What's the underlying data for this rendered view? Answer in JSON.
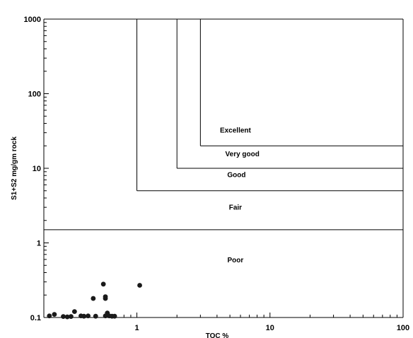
{
  "chart_data": {
    "type": "scatter",
    "xlabel": "TOC %",
    "ylabel": "S1+S2 mg/gm rock",
    "x_scale": "log",
    "y_scale": "log",
    "xlim": [
      0.2,
      100
    ],
    "ylim": [
      0.1,
      1000
    ],
    "x_ticks": [
      1,
      10,
      100
    ],
    "x_tick_labels": [
      "1",
      "10",
      "100"
    ],
    "y_ticks": [
      0.1,
      1,
      10,
      100,
      1000
    ],
    "y_tick_labels": [
      "0.1",
      "1",
      "10",
      "100",
      "1000"
    ],
    "grid": false,
    "legend": "none",
    "point_color": "#1a1a1a",
    "zones": [
      {
        "name": "Excellent",
        "min_toc": 3,
        "min_s1s2": 20,
        "label_x": 5.5,
        "label_y": 30
      },
      {
        "name": "Very good",
        "min_toc": 2,
        "min_s1s2": 10,
        "label_x": 6.2,
        "label_y": 14.5
      },
      {
        "name": "Good",
        "min_toc": 1,
        "min_s1s2": 5,
        "label_x": 5.6,
        "label_y": 7.6
      },
      {
        "name": "Fair",
        "min_toc": 0,
        "min_s1s2": 1.5,
        "label_x": 5.5,
        "label_y": 2.8
      },
      {
        "name": "Poor",
        "min_toc": 0,
        "min_s1s2": 0,
        "label_x": 5.5,
        "label_y": 0.55
      }
    ],
    "points": [
      {
        "x": 0.22,
        "y": 0.105
      },
      {
        "x": 0.24,
        "y": 0.11
      },
      {
        "x": 0.28,
        "y": 0.103
      },
      {
        "x": 0.3,
        "y": 0.102
      },
      {
        "x": 0.32,
        "y": 0.103
      },
      {
        "x": 0.34,
        "y": 0.12
      },
      {
        "x": 0.38,
        "y": 0.105
      },
      {
        "x": 0.4,
        "y": 0.104
      },
      {
        "x": 0.43,
        "y": 0.105
      },
      {
        "x": 0.47,
        "y": 0.18
      },
      {
        "x": 0.49,
        "y": 0.104
      },
      {
        "x": 0.56,
        "y": 0.28
      },
      {
        "x": 0.58,
        "y": 0.19
      },
      {
        "x": 0.58,
        "y": 0.18
      },
      {
        "x": 0.58,
        "y": 0.105
      },
      {
        "x": 0.6,
        "y": 0.115
      },
      {
        "x": 0.62,
        "y": 0.105
      },
      {
        "x": 0.65,
        "y": 0.104
      },
      {
        "x": 0.68,
        "y": 0.104
      },
      {
        "x": 1.05,
        "y": 0.27
      }
    ]
  }
}
